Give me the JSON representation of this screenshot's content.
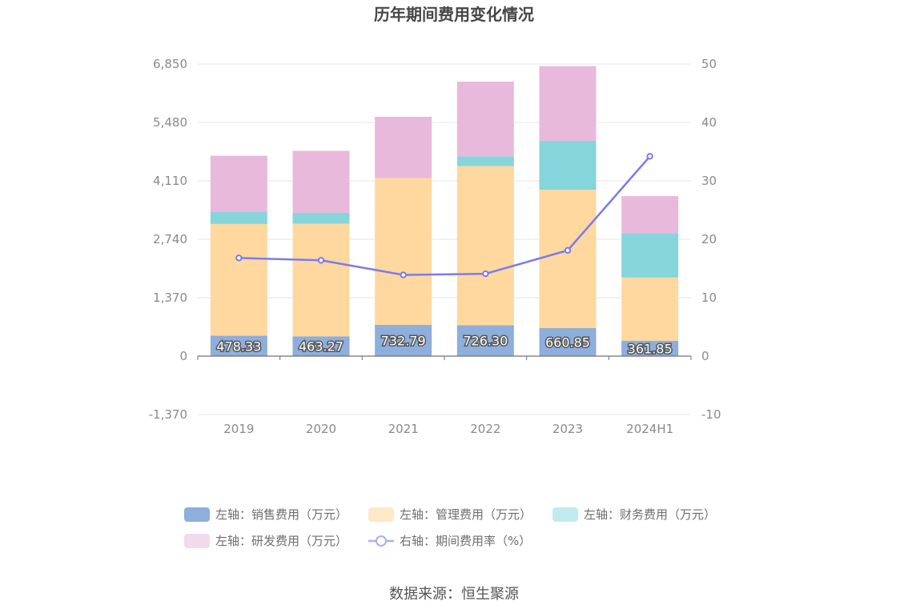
{
  "chart_data": {
    "type": "bar",
    "title": "历年期间费用变化情况",
    "categories": [
      "2019",
      "2020",
      "2021",
      "2022",
      "2023",
      "2024H1"
    ],
    "series": [
      {
        "name": "左轴：销售费用（万元）",
        "axis": "left",
        "color": "#8eaedb",
        "values": [
          478.33,
          463.27,
          732.79,
          726.3,
          660.85,
          361.85
        ],
        "labels": [
          "478.33",
          "463.27",
          "732.79",
          "726.30",
          "660.85",
          "361.85"
        ]
      },
      {
        "name": "左轴：管理费用（万元）",
        "axis": "left",
        "color": "#fed89e",
        "values": [
          2620,
          2640,
          3440,
          3730,
          3240,
          1480
        ]
      },
      {
        "name": "左轴：财务费用（万元）",
        "axis": "left",
        "color": "#86d5db",
        "values": [
          280,
          260,
          -10,
          230,
          1150,
          1030
        ]
      },
      {
        "name": "左轴：研发费用（万元）",
        "axis": "left",
        "color": "#e8b9da",
        "values": [
          1320,
          1450,
          1440,
          1750,
          1750,
          880
        ]
      },
      {
        "name": "右轴：期间费用率（%）",
        "axis": "right",
        "type": "line",
        "color": "#7b7bee",
        "values": [
          16.8,
          16.4,
          13.9,
          14.1,
          18.1,
          34.2
        ]
      }
    ],
    "y_left": {
      "ticks": [
        "6,850",
        "5,480",
        "4,110",
        "2,740",
        "1,370",
        "0",
        "-1,370"
      ],
      "min": -1370,
      "max": 6850
    },
    "y_right": {
      "ticks": [
        "50",
        "40",
        "30",
        "20",
        "10",
        "0",
        "-10"
      ],
      "min": -10,
      "max": 50
    },
    "grid": true,
    "legend_position": "bottom"
  },
  "footer": {
    "source": "数据来源：恒生聚源"
  }
}
